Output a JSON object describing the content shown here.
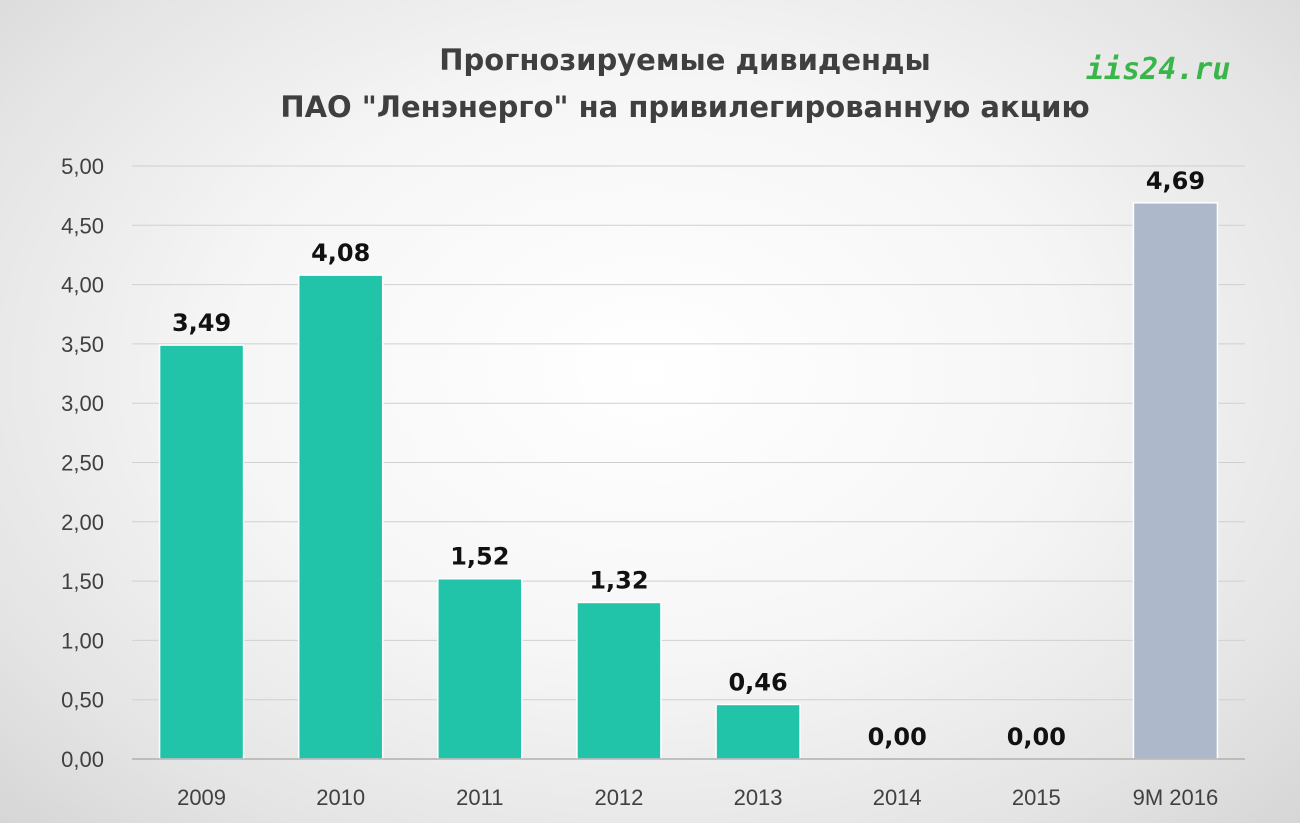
{
  "chart_data": {
    "type": "bar",
    "title_line1": "Прогнозируемые дивиденды",
    "title_line2": "ПАО \"Ленэнерго\" на привилегированную акцию",
    "watermark": "iis24.ru",
    "categories": [
      "2009",
      "2010",
      "2011",
      "2012",
      "2013",
      "2014",
      "2015",
      "9M 2016"
    ],
    "values": [
      3.49,
      4.08,
      1.52,
      1.32,
      0.46,
      0.0,
      0.0,
      4.69
    ],
    "data_labels": [
      "3,49",
      "4,08",
      "1,52",
      "1,32",
      "0,46",
      "0,00",
      "0,00",
      "4,69"
    ],
    "ytick_labels": [
      "0,00",
      "0,50",
      "1,00",
      "1,50",
      "2,00",
      "2,50",
      "3,00",
      "3,50",
      "4,00",
      "4,50",
      "5,00"
    ],
    "ytick_values": [
      0,
      0.5,
      1,
      1.5,
      2,
      2.5,
      3,
      3.5,
      4,
      4.5,
      5
    ],
    "ylim": [
      0,
      5
    ],
    "grid": true,
    "colors": {
      "actual": "#22c4a9",
      "forecast": "#adb9cb",
      "grid": "#d0d0d0",
      "axis": "#b0b0b0"
    },
    "bar_color_keys": [
      "actual",
      "actual",
      "actual",
      "actual",
      "actual",
      "actual",
      "actual",
      "forecast"
    ]
  }
}
